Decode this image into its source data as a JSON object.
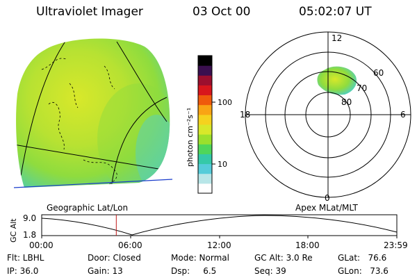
{
  "header": {
    "instrument": "Ultraviolet Imager",
    "date": "03 Oct 00",
    "time": "05:02:07 UT"
  },
  "colorbar": {
    "label": "photon cm⁻²s⁻¹",
    "ticks": [
      "100",
      "10"
    ],
    "colors": [
      "#ffffff",
      "#b8e6e8",
      "#55ccd9",
      "#35c9a8",
      "#4fd65a",
      "#9be02d",
      "#d8e82a",
      "#f5d21e",
      "#f9a414",
      "#ef5a0c",
      "#d8161c",
      "#9b0f2e",
      "#3a0f4f",
      "#000000"
    ]
  },
  "geo_image": {
    "label": "Geographic Lat/Lon"
  },
  "polar_plot": {
    "label": "Apex MLat/MLT",
    "mlt_labels": [
      "12",
      "18",
      "6",
      "0"
    ],
    "lat_labels": [
      "60",
      "70",
      "80"
    ]
  },
  "altitude_strip": {
    "ylabel": "GC Alt",
    "ytick_top": "9.0",
    "ytick_bottom": "1.8",
    "xticks": [
      "00:00",
      "06:00",
      "12:00",
      "18:00",
      "23:59"
    ],
    "current_time_marker_hours": 5.04
  },
  "info": {
    "flt": "Flt: LBHL",
    "ip": "IP: 36.0",
    "door": "Door: Closed",
    "gain": "Gain: 13",
    "mode": "Mode: Normal",
    "dsp": "Dsp:     6.5",
    "gcalt": "GC Alt: 3.0 Re",
    "seq": "Seq: 39",
    "glat": "GLat:   76.6",
    "glon": "GLon:   73.6"
  }
}
